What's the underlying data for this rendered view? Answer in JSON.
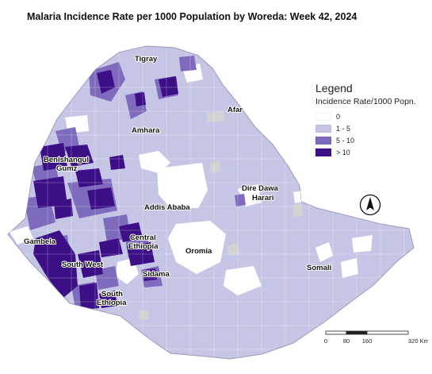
{
  "title": "Malaria Incidence Rate per 1000 Population by Woreda:  Week 42, 2024",
  "legend": {
    "title": "Legend",
    "subtitle": "Incidence Rate/1000 Popn.",
    "classes": [
      {
        "label": "0",
        "color": "#ffffff"
      },
      {
        "label": "1 - 5",
        "color": "#c5c6e6"
      },
      {
        "label": "5 - 10",
        "color": "#7f6bbd"
      },
      {
        "label": "> 10",
        "color": "#3d0f86"
      }
    ]
  },
  "regions": [
    "Tigray",
    "Afar",
    "Amhara",
    "Benishangul Gumz",
    "Addis Ababa",
    "Dire Dawa",
    "Harari",
    "Gambela",
    "Central Ethiopia",
    "Oromia",
    "South West",
    "Sidama",
    "South Ethiopia",
    "Somali"
  ],
  "region_labels": {
    "tigray": "Tigray",
    "afar": "Afar",
    "amhara": "Amhara",
    "benishangul_1": "Benishangul",
    "benishangul_2": "Gumz",
    "addis": "Addis Ababa",
    "diredawa": "Dire Dawa",
    "harari": "Harari",
    "gambela": "Gambela",
    "central_1": "Central",
    "central_2": "Ethiopia",
    "oromia": "Oromia",
    "southwest": "South West",
    "sidama": "Sidama",
    "southeth_1": "South",
    "southeth_2": "Ethiopia",
    "somali": "Somali"
  },
  "scale_bar": {
    "ticks": [
      "0",
      "80",
      "160",
      "320 Kms"
    ]
  },
  "north_arrow_icon": "north-arrow-icon",
  "colors": {
    "no_data": "#d2d2d2",
    "border": "#9a9aba"
  }
}
